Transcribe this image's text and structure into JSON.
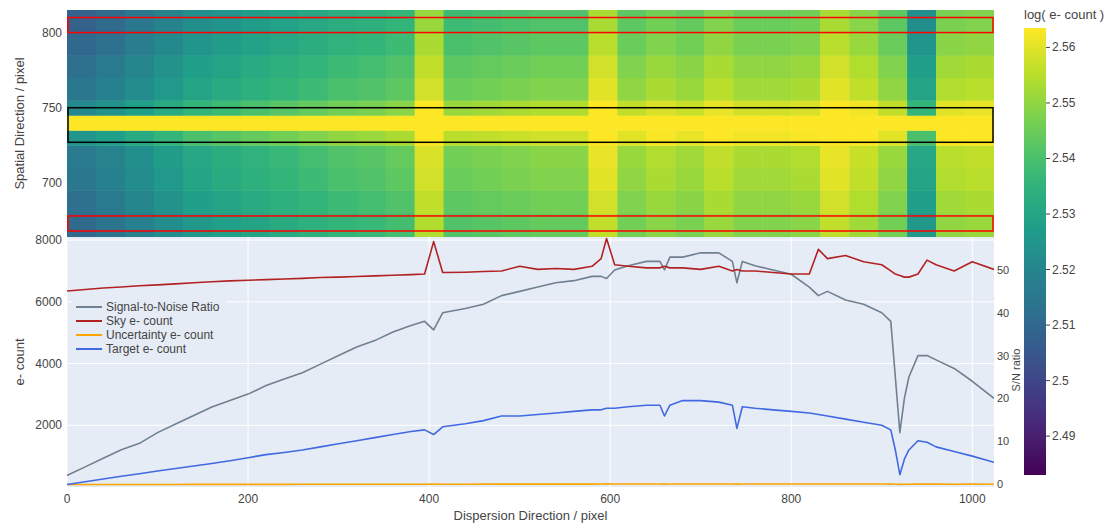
{
  "chart_data": [
    {
      "type": "heatmap",
      "y_label": "Spatial Direction / pixel",
      "xlim": [
        0,
        1024
      ],
      "ylim": [
        664,
        815
      ],
      "yticks": [
        700,
        750,
        800
      ],
      "tick_labels": "y",
      "x_edges": [
        0,
        32,
        64,
        96,
        128,
        160,
        192,
        224,
        256,
        288,
        320,
        352,
        384,
        416,
        448,
        480,
        512,
        544,
        576,
        608,
        640,
        672,
        704,
        736,
        768,
        800,
        832,
        864,
        896,
        928,
        960,
        992,
        1024
      ],
      "y_edges": [
        664,
        680,
        695,
        710,
        725,
        735,
        745,
        755,
        770,
        785,
        800,
        815
      ],
      "values": [
        [
          2.511,
          2.514,
          2.518,
          2.522,
          2.526,
          2.528,
          2.53,
          2.532,
          2.534,
          2.536,
          2.537,
          2.539,
          2.554,
          2.541,
          2.542,
          2.543,
          2.544,
          2.544,
          2.556,
          2.546,
          2.549,
          2.547,
          2.551,
          2.548,
          2.548,
          2.549,
          2.556,
          2.552,
          2.546,
          2.526,
          2.55,
          2.551
        ],
        [
          2.513,
          2.516,
          2.52,
          2.524,
          2.528,
          2.53,
          2.532,
          2.534,
          2.536,
          2.538,
          2.539,
          2.541,
          2.556,
          2.543,
          2.544,
          2.545,
          2.546,
          2.546,
          2.558,
          2.548,
          2.551,
          2.549,
          2.553,
          2.55,
          2.55,
          2.551,
          2.558,
          2.554,
          2.548,
          2.528,
          2.552,
          2.553
        ],
        [
          2.515,
          2.518,
          2.522,
          2.526,
          2.53,
          2.532,
          2.534,
          2.536,
          2.538,
          2.54,
          2.541,
          2.543,
          2.558,
          2.545,
          2.546,
          2.547,
          2.548,
          2.548,
          2.56,
          2.55,
          2.553,
          2.551,
          2.555,
          2.552,
          2.552,
          2.553,
          2.56,
          2.556,
          2.55,
          2.53,
          2.554,
          2.555
        ],
        [
          2.516,
          2.519,
          2.523,
          2.527,
          2.531,
          2.533,
          2.535,
          2.537,
          2.539,
          2.541,
          2.542,
          2.544,
          2.559,
          2.546,
          2.547,
          2.548,
          2.549,
          2.549,
          2.561,
          2.551,
          2.554,
          2.552,
          2.556,
          2.553,
          2.553,
          2.554,
          2.561,
          2.557,
          2.551,
          2.531,
          2.555,
          2.556
        ],
        [
          2.525,
          2.528,
          2.532,
          2.536,
          2.54,
          2.542,
          2.544,
          2.546,
          2.548,
          2.55,
          2.551,
          2.553,
          2.568,
          2.555,
          2.556,
          2.557,
          2.558,
          2.558,
          2.57,
          2.56,
          2.563,
          2.561,
          2.565,
          2.562,
          2.562,
          2.563,
          2.57,
          2.566,
          2.56,
          2.54,
          2.564,
          2.565
        ],
        [
          2.58,
          2.58,
          2.58,
          2.58,
          2.58,
          2.58,
          2.58,
          2.58,
          2.58,
          2.58,
          2.58,
          2.58,
          2.58,
          2.58,
          2.58,
          2.58,
          2.58,
          2.58,
          2.58,
          2.58,
          2.58,
          2.58,
          2.58,
          2.58,
          2.58,
          2.58,
          2.58,
          2.58,
          2.58,
          2.58,
          2.58,
          2.58
        ],
        [
          2.521,
          2.524,
          2.528,
          2.532,
          2.536,
          2.538,
          2.54,
          2.542,
          2.544,
          2.546,
          2.547,
          2.549,
          2.564,
          2.551,
          2.552,
          2.553,
          2.554,
          2.554,
          2.566,
          2.556,
          2.559,
          2.557,
          2.561,
          2.558,
          2.558,
          2.559,
          2.566,
          2.562,
          2.556,
          2.536,
          2.56,
          2.561
        ],
        [
          2.515,
          2.518,
          2.522,
          2.526,
          2.53,
          2.532,
          2.534,
          2.536,
          2.538,
          2.54,
          2.541,
          2.543,
          2.558,
          2.545,
          2.546,
          2.547,
          2.548,
          2.548,
          2.56,
          2.55,
          2.553,
          2.551,
          2.555,
          2.552,
          2.552,
          2.553,
          2.56,
          2.556,
          2.55,
          2.53,
          2.554,
          2.555
        ],
        [
          2.513,
          2.516,
          2.52,
          2.524,
          2.528,
          2.53,
          2.532,
          2.534,
          2.536,
          2.538,
          2.539,
          2.541,
          2.556,
          2.543,
          2.544,
          2.545,
          2.546,
          2.546,
          2.558,
          2.548,
          2.551,
          2.549,
          2.553,
          2.55,
          2.55,
          2.551,
          2.558,
          2.554,
          2.548,
          2.528,
          2.552,
          2.553
        ],
        [
          2.51,
          2.513,
          2.517,
          2.521,
          2.525,
          2.527,
          2.529,
          2.531,
          2.533,
          2.535,
          2.536,
          2.538,
          2.553,
          2.54,
          2.541,
          2.542,
          2.543,
          2.543,
          2.555,
          2.545,
          2.548,
          2.546,
          2.55,
          2.547,
          2.547,
          2.548,
          2.555,
          2.551,
          2.545,
          2.525,
          2.549,
          2.55
        ],
        [
          2.508,
          2.511,
          2.515,
          2.519,
          2.523,
          2.525,
          2.527,
          2.529,
          2.531,
          2.533,
          2.534,
          2.536,
          2.551,
          2.538,
          2.539,
          2.54,
          2.541,
          2.541,
          2.553,
          2.543,
          2.546,
          2.544,
          2.548,
          2.545,
          2.545,
          2.546,
          2.553,
          2.549,
          2.543,
          2.523,
          2.547,
          2.548
        ]
      ],
      "colorbar": {
        "title": "log( e- count )",
        "range": [
          2.483,
          2.5635
        ],
        "ticks": [
          2.49,
          2.5,
          2.51,
          2.52,
          2.53,
          2.54,
          2.55,
          2.56
        ]
      },
      "regions": [
        {
          "y0": 668,
          "y1": 678,
          "color": "red"
        },
        {
          "y0": 800,
          "y1": 810,
          "color": "red"
        },
        {
          "y0": 727,
          "y1": 750,
          "color": "black"
        }
      ]
    },
    {
      "type": "line",
      "x_label": "Dispersion Direction / pixel",
      "y_label": "e- count",
      "y2_label": "S/N ratio",
      "xlim": [
        0,
        1024
      ],
      "xticks": [
        0,
        200,
        400,
        600,
        800,
        1000
      ],
      "ylim": [
        0,
        8100
      ],
      "yticks": [
        2000,
        4000,
        6000,
        8000
      ],
      "y2lim": [
        -0.7,
        57.7
      ],
      "y2ticks": [
        0,
        10,
        20,
        30,
        40,
        50
      ],
      "grid": true,
      "legend": "left",
      "x": [
        0,
        20,
        40,
        60,
        80,
        100,
        120,
        140,
        160,
        180,
        200,
        220,
        240,
        260,
        280,
        300,
        320,
        340,
        360,
        380,
        395,
        405,
        415,
        440,
        460,
        480,
        500,
        520,
        540,
        560,
        580,
        590,
        596,
        605,
        620,
        640,
        655,
        660,
        666,
        680,
        700,
        720,
        735,
        740,
        746,
        760,
        780,
        800,
        820,
        830,
        840,
        860,
        880,
        900,
        910,
        915,
        920,
        925,
        930,
        940,
        950,
        960,
        980,
        1000,
        1024
      ],
      "series": [
        {
          "name": "Signal-to-Noise Ratio",
          "color": "#708090",
          "axis": "y2",
          "values": [
            2,
            4,
            6,
            8,
            9.5,
            12,
            14,
            16,
            18,
            19.5,
            21,
            23,
            24.5,
            26,
            28,
            30,
            32,
            33.5,
            35.5,
            37,
            38,
            36,
            40,
            41,
            42,
            44,
            45,
            46,
            47,
            47.5,
            48.5,
            48.5,
            48,
            50,
            51,
            52,
            52,
            50,
            53,
            53,
            54,
            54,
            52,
            47,
            52,
            51,
            50,
            49,
            46,
            44,
            45,
            43,
            42,
            40,
            38,
            25,
            12,
            20,
            25,
            30,
            30,
            29,
            27,
            24,
            20
          ]
        },
        {
          "name": "Sky e- count",
          "color": "#b22222",
          "values": [
            6350,
            6400,
            6450,
            6480,
            6520,
            6550,
            6580,
            6620,
            6650,
            6680,
            6700,
            6720,
            6740,
            6760,
            6790,
            6800,
            6820,
            6840,
            6860,
            6880,
            6900,
            7950,
            6950,
            6960,
            6980,
            7000,
            7150,
            7050,
            7080,
            7050,
            7150,
            7400,
            8050,
            7200,
            7150,
            7100,
            7100,
            7150,
            7100,
            7100,
            7050,
            7150,
            7000,
            7050,
            7000,
            7000,
            6950,
            6900,
            6900,
            7700,
            7400,
            7500,
            7300,
            7200,
            7000,
            6900,
            6850,
            6800,
            6800,
            6900,
            7350,
            7200,
            7000,
            7300,
            7050
          ]
        },
        {
          "name": "Uncertainty e- count",
          "color": "#ffa500",
          "values": [
            80,
            81,
            81,
            82,
            82,
            83,
            83,
            84,
            84,
            85,
            85,
            86,
            86,
            87,
            87,
            88,
            88,
            89,
            89,
            90,
            90,
            98,
            91,
            91,
            92,
            92,
            93,
            93,
            93,
            94,
            94,
            95,
            100,
            95,
            95,
            95,
            96,
            94,
            96,
            96,
            96,
            96,
            95,
            92,
            95,
            95,
            95,
            95,
            95,
            98,
            97,
            97,
            96,
            95,
            93,
            90,
            85,
            88,
            90,
            92,
            93,
            92,
            91,
            92,
            90
          ]
        },
        {
          "name": "Target e- count",
          "color": "#4169e1",
          "values": [
            80,
            170,
            260,
            350,
            430,
            520,
            600,
            680,
            760,
            850,
            950,
            1050,
            1120,
            1200,
            1300,
            1400,
            1500,
            1600,
            1700,
            1800,
            1850,
            1700,
            1950,
            2050,
            2150,
            2300,
            2300,
            2350,
            2400,
            2450,
            2500,
            2500,
            2550,
            2550,
            2600,
            2650,
            2650,
            2300,
            2650,
            2800,
            2800,
            2750,
            2650,
            1900,
            2600,
            2550,
            2500,
            2450,
            2400,
            2350,
            2300,
            2200,
            2100,
            2000,
            1850,
            1200,
            400,
            900,
            1200,
            1500,
            1450,
            1300,
            1150,
            1000,
            800
          ]
        }
      ]
    }
  ]
}
